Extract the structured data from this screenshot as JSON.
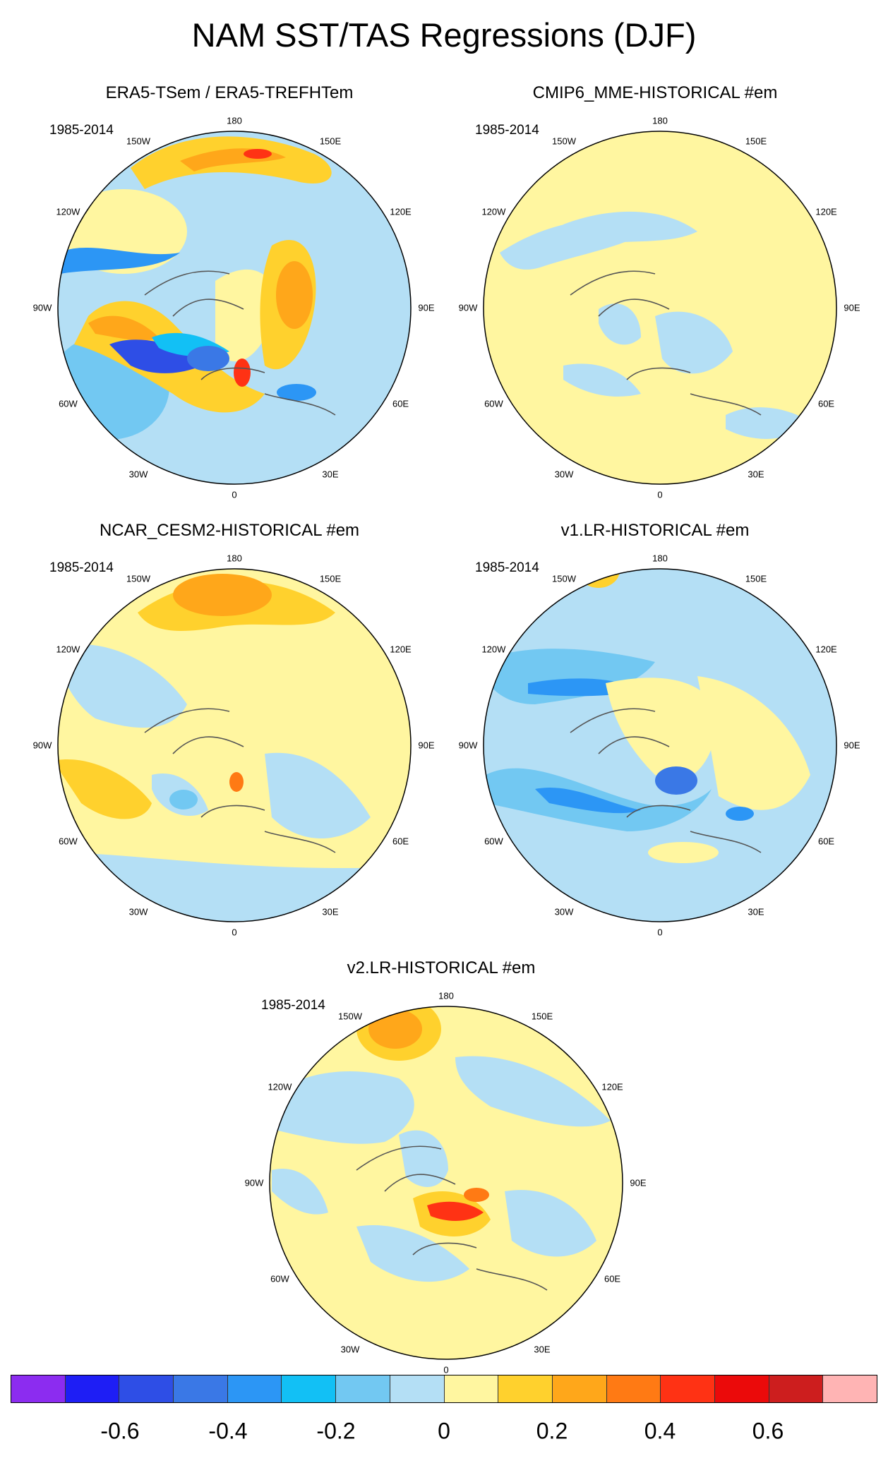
{
  "figure_title": "NAM SST/TAS Regressions (DJF)",
  "panels": [
    {
      "title": "ERA5-TSem / ERA5-TREFHTem",
      "period": "1985-2014"
    },
    {
      "title": "CMIP6_MME-HISTORICAL  #em",
      "period": "1985-2014"
    },
    {
      "title": "NCAR_CESM2-HISTORICAL  #em",
      "period": "1985-2014"
    },
    {
      "title": "v1.LR-HISTORICAL  #em",
      "period": "1985-2014"
    },
    {
      "title": "v2.LR-HISTORICAL  #em",
      "period": "1985-2014"
    }
  ],
  "longitude_labels": [
    "180",
    "150E",
    "120E",
    "90E",
    "60E",
    "30E",
    "0",
    "30W",
    "60W",
    "90W",
    "120W",
    "150W"
  ],
  "colorbar": {
    "colors": [
      "#8c2cf0",
      "#1e1ef5",
      "#2e4ee6",
      "#3a78e6",
      "#2c96f5",
      "#12c0f5",
      "#72c8f2",
      "#b4dff5",
      "#fff6a0",
      "#ffd12d",
      "#ffa71a",
      "#ff7a14",
      "#ff3214",
      "#eb0a0a",
      "#cd1e1e",
      "#ffb4b4"
    ],
    "tick_labels": [
      "-0.6",
      "-0.4",
      "-0.2",
      "0",
      "0.2",
      "0.4",
      "0.6"
    ]
  }
}
